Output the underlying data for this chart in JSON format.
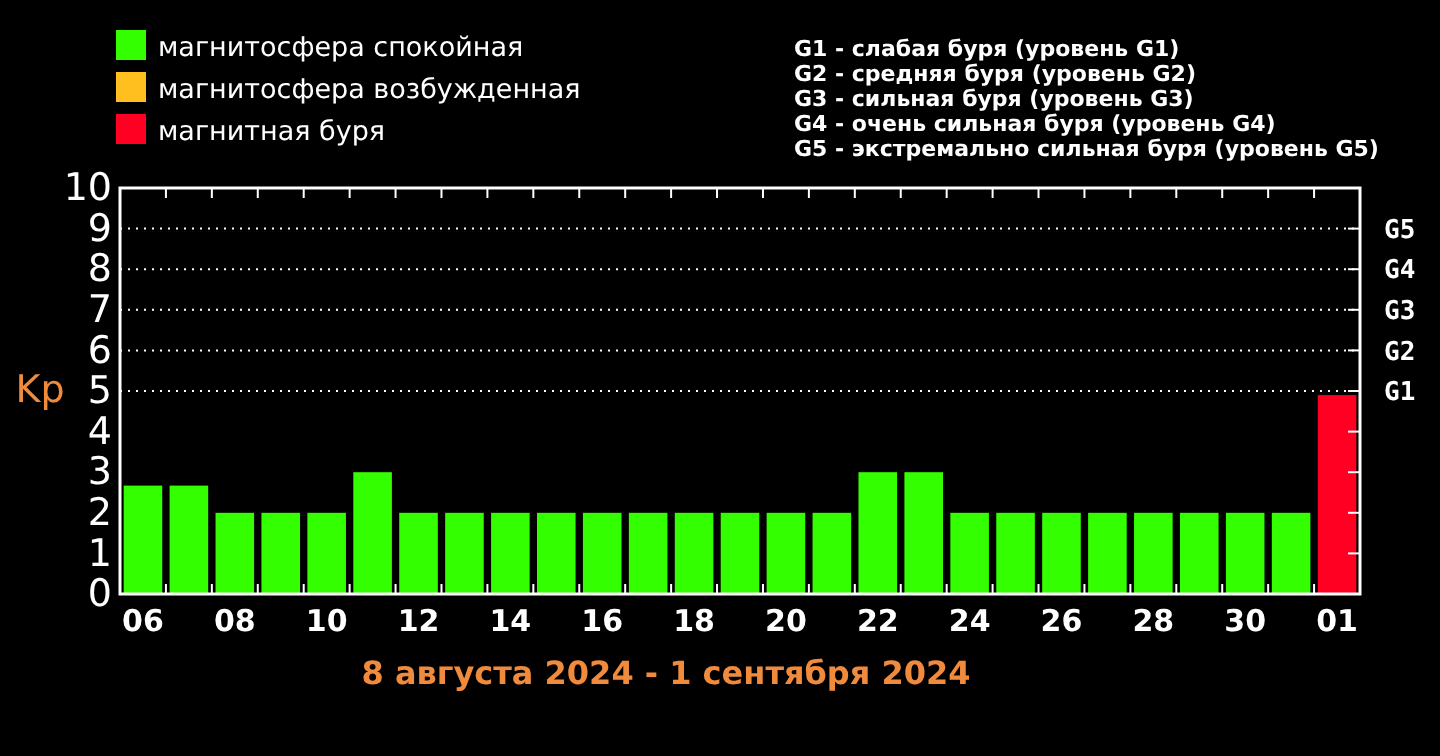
{
  "chart_data": {
    "type": "bar",
    "categories": [
      "06",
      null,
      "08",
      null,
      "10",
      null,
      "12",
      null,
      "14",
      null,
      "16",
      null,
      "18",
      null,
      "20",
      null,
      "22",
      null,
      "24",
      null,
      "26",
      null,
      "28",
      null,
      "30",
      null,
      "01"
    ],
    "series": [
      {
        "name": "магнитосфера спокойная",
        "color": "#33ff00",
        "values": [
          2.67,
          2.67,
          2,
          2,
          2,
          3,
          2,
          2,
          2,
          2,
          2,
          2,
          2,
          2,
          2,
          2,
          3,
          3,
          2,
          2,
          2,
          2,
          2,
          2,
          2,
          2,
          null
        ]
      },
      {
        "name": "магнитосфера возбужденная",
        "color": "#ffbf1f",
        "values": [
          null,
          null,
          null,
          null,
          null,
          null,
          null,
          null,
          null,
          null,
          null,
          null,
          null,
          null,
          null,
          null,
          null,
          null,
          null,
          null,
          null,
          null,
          null,
          null,
          null,
          null,
          null
        ]
      },
      {
        "name": "магнитная буря",
        "color": "#ff0022",
        "values": [
          null,
          null,
          null,
          null,
          null,
          null,
          null,
          null,
          null,
          null,
          null,
          null,
          null,
          null,
          null,
          null,
          null,
          null,
          null,
          null,
          null,
          null,
          null,
          null,
          null,
          null,
          4.9
        ]
      }
    ],
    "ylim": [
      0,
      10
    ],
    "yticks": [
      0,
      1,
      2,
      3,
      4,
      5,
      6,
      7,
      8,
      9,
      10
    ],
    "ylabel": "Kp",
    "xlabel": "8 августа 2024 - 1 сентября 2024",
    "ref_lines": [
      {
        "axis": "y",
        "value": 5,
        "label": "G1",
        "line_style": "dotted"
      },
      {
        "axis": "y",
        "value": 6,
        "label": "G2",
        "line_style": "dotted"
      },
      {
        "axis": "y",
        "value": 7,
        "label": "G3",
        "line_style": "dotted"
      },
      {
        "axis": "y",
        "value": 8,
        "label": "G4",
        "line_style": "dotted"
      },
      {
        "axis": "y",
        "value": 9,
        "label": "G5",
        "line_style": "dotted"
      }
    ],
    "legend": "top left",
    "annotations": [
      "G1 - слабая буря (уровень G1)",
      "G2 - средняя буря (уровень G2)",
      "G3 - сильная буря (уровень G3)",
      "G4 - очень сильная буря (уровень G4)",
      "G5 - экстремально сильная буря (уровень G5)"
    ]
  }
}
